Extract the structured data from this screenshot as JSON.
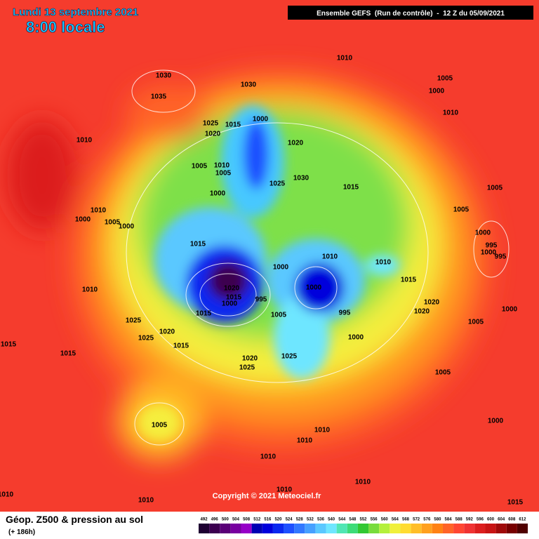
{
  "header": {
    "date": "Lundi 13 septembre 2021",
    "time": "8:00 locale",
    "model": "Ensemble GEFS  (Run de contrôle)  -  12 Z du 05/09/2021"
  },
  "footer": {
    "title": "Géop. Z500 & pression au sol",
    "lead": "(+ 186h)",
    "copyright": "Copyright © 2021 Meteociel.fr"
  },
  "colorbar": {
    "ticks": [
      492,
      496,
      500,
      504,
      508,
      512,
      516,
      520,
      524,
      528,
      532,
      536,
      540,
      544,
      548,
      552,
      556,
      560,
      564,
      568,
      572,
      576,
      580,
      584,
      588,
      592,
      596,
      600,
      604,
      608,
      612
    ],
    "colors": [
      "#1e0032",
      "#3c0050",
      "#5a0078",
      "#7800a0",
      "#9600c8",
      "#0000b4",
      "#0000dc",
      "#0a28f0",
      "#1e50ff",
      "#3278ff",
      "#46a0ff",
      "#5ac8ff",
      "#6ee6ff",
      "#50e6b4",
      "#3cdc78",
      "#32c832",
      "#78dc3c",
      "#b4f03c",
      "#f0f03c",
      "#ffdc32",
      "#ffbe28",
      "#ffa01e",
      "#ff8214",
      "#ff6428",
      "#ff4632",
      "#f03232",
      "#dc1e1e",
      "#c81414",
      "#a00a0a",
      "#780000",
      "#500000"
    ]
  },
  "isobar_labels": [
    1030,
    1035,
    1030,
    1010,
    1025,
    1015,
    1000,
    1020,
    1020,
    1005,
    1010,
    1005,
    1025,
    1030,
    1015,
    1000,
    1010,
    1000,
    1005,
    1000,
    1015,
    1000,
    1010,
    1010,
    1020,
    1015,
    995,
    1000,
    1015,
    1010,
    1015,
    1000,
    1005,
    995,
    1020,
    1020,
    1025,
    1025,
    1020,
    1015,
    1000,
    1005,
    1000,
    1015,
    1015,
    1020,
    1025,
    1025,
    1005,
    1005,
    1000,
    1010,
    1010,
    1010,
    1010,
    1010,
    1010,
    1010,
    1015,
    1005,
    1000,
    1010,
    1010,
    1005,
    1005,
    1000,
    995,
    1000,
    995
  ]
}
